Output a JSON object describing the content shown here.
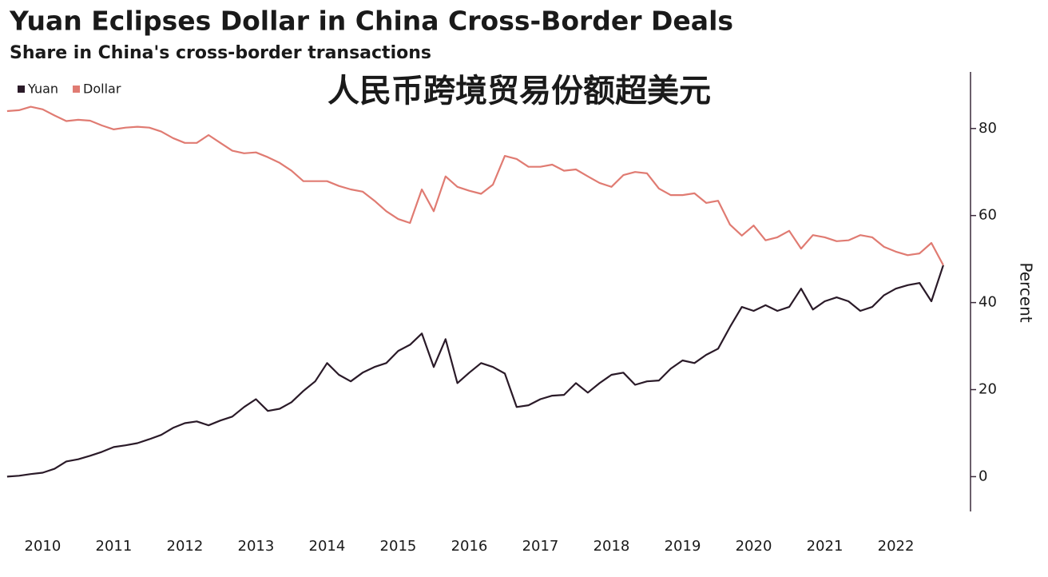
{
  "chart_data": {
    "type": "line",
    "title": "Yuan Eclipses Dollar in China Cross-Border Deals",
    "subtitle": "Share in China's cross-border transactions",
    "annotation": "人民币跨境贸易份额超美元",
    "y_label": "Percent",
    "x": [
      2010,
      2010.167,
      2010.333,
      2010.5,
      2010.667,
      2010.833,
      2011,
      2011.167,
      2011.333,
      2011.5,
      2011.667,
      2011.833,
      2012,
      2012.167,
      2012.333,
      2012.5,
      2012.667,
      2012.833,
      2013,
      2013.167,
      2013.333,
      2013.5,
      2013.667,
      2013.833,
      2014,
      2014.167,
      2014.333,
      2014.5,
      2014.667,
      2014.833,
      2015,
      2015.167,
      2015.333,
      2015.5,
      2015.667,
      2015.833,
      2016,
      2016.167,
      2016.333,
      2016.5,
      2016.667,
      2016.833,
      2017,
      2017.167,
      2017.333,
      2017.5,
      2017.667,
      2017.833,
      2018,
      2018.167,
      2018.333,
      2018.5,
      2018.667,
      2018.833,
      2019,
      2019.167,
      2019.333,
      2019.5,
      2019.667,
      2019.833,
      2020,
      2020.167,
      2020.333,
      2020.5,
      2020.667,
      2020.833,
      2021,
      2021.167,
      2021.333,
      2021.5,
      2021.667,
      2021.833,
      2022,
      2022.167,
      2022.333,
      2022.5,
      2022.667,
      2022.833,
      2023,
      2023.167
    ],
    "series": [
      {
        "name": "Yuan",
        "color": "#2a1a28",
        "values": [
          0,
          0.2,
          0.6,
          0.9,
          1.8,
          3.5,
          4,
          4.8,
          5.7,
          6.8,
          7.2,
          7.7,
          8.6,
          9.6,
          11.2,
          12.3,
          12.7,
          11.8,
          12.9,
          13.8,
          16,
          17.8,
          15.1,
          15.6,
          17.1,
          19.7,
          21.9,
          26.1,
          23.4,
          21.9,
          23.9,
          25.2,
          26.1,
          28.9,
          30.3,
          32.9,
          25.2,
          31.6,
          21.5,
          23.9,
          26.1,
          25.2,
          23.7,
          16,
          16.4,
          17.8,
          18.6,
          18.8,
          21.5,
          19.3,
          21.5,
          23.4,
          23.9,
          21.1,
          21.9,
          22.1,
          24.8,
          26.7,
          26.1,
          28,
          29.4,
          34.4,
          39,
          38.1,
          39.4,
          38.1,
          39,
          43.2,
          38.4,
          40.3,
          41.2,
          40.3,
          38.1,
          39,
          41.7,
          43.2,
          44,
          44.5,
          40.3,
          48.6
        ]
      },
      {
        "name": "Dollar",
        "color": "#e07b72",
        "values": [
          84,
          84.2,
          85,
          84.4,
          83,
          81.7,
          82,
          81.8,
          80.7,
          79.8,
          80.2,
          80.4,
          80.2,
          79.3,
          77.8,
          76.7,
          76.7,
          78.5,
          76.7,
          74.9,
          74.3,
          74.5,
          73.4,
          72.1,
          70.3,
          67.9,
          67.9,
          67.9,
          66.8,
          66,
          65.5,
          63.4,
          61,
          59.2,
          58.3,
          66,
          61,
          69,
          66.6,
          65.7,
          65,
          67.1,
          73.7,
          73,
          71.2,
          71.2,
          71.7,
          70.3,
          70.6,
          69,
          67.5,
          66.6,
          69.3,
          70,
          69.7,
          66.2,
          64.7,
          64.7,
          65.1,
          62.9,
          63.4,
          57.9,
          55.4,
          57.7,
          54.3,
          55,
          56.5,
          52.4,
          55.5,
          55,
          54.1,
          54.3,
          55.5,
          55,
          52.8,
          51.7,
          50.9,
          51.3,
          53.7,
          48.6
        ]
      }
    ],
    "xlim": [
      2009.9,
      2023.55
    ],
    "xticks": [
      {
        "value": 2010.5,
        "label": "2010"
      },
      {
        "value": 2011.5,
        "label": "2011"
      },
      {
        "value": 2012.5,
        "label": "2012"
      },
      {
        "value": 2013.5,
        "label": "2013"
      },
      {
        "value": 2014.5,
        "label": "2014"
      },
      {
        "value": 2015.5,
        "label": "2015"
      },
      {
        "value": 2016.5,
        "label": "2016"
      },
      {
        "value": 2017.5,
        "label": "2017"
      },
      {
        "value": 2018.5,
        "label": "2018"
      },
      {
        "value": 2019.5,
        "label": "2019"
      },
      {
        "value": 2020.5,
        "label": "2020"
      },
      {
        "value": 2021.5,
        "label": "2021"
      },
      {
        "value": 2022.5,
        "label": "2022"
      }
    ],
    "ylim": [
      -8,
      93
    ],
    "yticks": [
      0,
      20,
      40,
      60,
      80
    ],
    "y_axis_side": "right",
    "legend": "top-left"
  }
}
